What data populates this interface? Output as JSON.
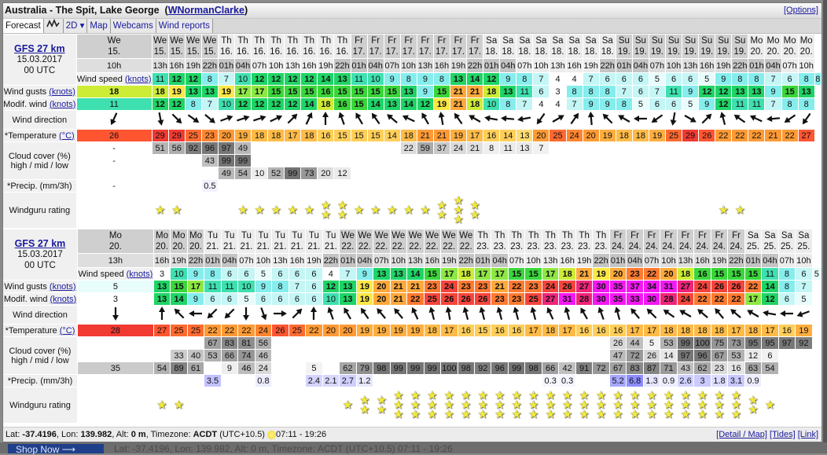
{
  "window": {
    "title": "Australia - The Spit, Lake George",
    "owner_link": "WNormanClarke",
    "options": "[Options]"
  },
  "tabs": [
    {
      "label": "Forecast",
      "active": true
    },
    {
      "label": "",
      "icon": "graph-icon"
    },
    {
      "label": "2D ▾"
    },
    {
      "label": "Map"
    },
    {
      "label": "Webcams"
    },
    {
      "label": "Wind reports"
    }
  ],
  "labels": {
    "model": "GFS 27 km",
    "date": "15.03.2017",
    "run": "00 UTC",
    "wind_speed": "Wind speed",
    "wind_gusts": "Wind gusts",
    "modif_wind": "Modif. wind",
    "knots": "(knots)",
    "direction": "Wind direction",
    "temperature": "*Temperature",
    "celsius": "(°C)",
    "cloud": "Cloud cover (%)",
    "cloud_sub": "high / mid / low",
    "precip": "*Precip. (mm/3h)",
    "rating": "Windguru rating"
  },
  "tables": [
    {
      "day_groups": [
        {
          "day": "We",
          "date": "15.",
          "hours": [
            "10h",
            "13h",
            "16h",
            "19h",
            "22h"
          ]
        },
        {
          "day": "Th",
          "date": "16.",
          "hours": [
            "01h",
            "04h",
            "07h",
            "10h",
            "13h",
            "16h",
            "19h",
            "22h"
          ]
        },
        {
          "day": "Fr",
          "date": "17.",
          "hours": [
            "01h",
            "04h",
            "07h",
            "10h",
            "13h",
            "16h",
            "19h",
            "22h"
          ]
        },
        {
          "day": "Sa",
          "date": "18.",
          "hours": [
            "01h",
            "04h",
            "07h",
            "10h",
            "13h",
            "16h",
            "19h",
            "22h"
          ]
        },
        {
          "day": "Su",
          "date": "19.",
          "hours": [
            "01h",
            "04h",
            "07h",
            "10h",
            "13h",
            "16h",
            "19h",
            "22h"
          ]
        },
        {
          "day": "Mo",
          "date": "20.",
          "hours": [
            "01h",
            "04h",
            "07h",
            "10h"
          ]
        }
      ],
      "wind_speed": [
        11,
        12,
        12,
        8,
        7,
        10,
        12,
        12,
        12,
        12,
        14,
        13,
        11,
        10,
        9,
        8,
        9,
        8,
        13,
        14,
        12,
        9,
        8,
        7,
        4,
        4,
        7,
        6,
        6,
        6,
        5,
        6,
        6,
        5,
        9,
        8,
        8,
        7,
        6,
        8,
        8
      ],
      "wind_gusts": [
        18,
        18,
        19,
        13,
        13,
        19,
        17,
        17,
        15,
        15,
        15,
        16,
        15,
        15,
        15,
        15,
        13,
        9,
        15,
        21,
        21,
        18,
        13,
        11,
        6,
        3,
        8,
        8,
        8,
        7,
        6,
        7,
        11,
        9,
        12,
        12,
        13,
        13,
        9,
        15,
        13
      ],
      "modif_wind": [
        11,
        12,
        12,
        8,
        7,
        10,
        12,
        12,
        12,
        12,
        14,
        18,
        16,
        15,
        14,
        13,
        14,
        12,
        19,
        21,
        18,
        10,
        8,
        7,
        4,
        4,
        7,
        9,
        9,
        8,
        5,
        6,
        6,
        5,
        9,
        12,
        11,
        11,
        7,
        8,
        8
      ],
      "wind_direction_deg": [
        205,
        170,
        135,
        125,
        130,
        70,
        72,
        72,
        65,
        45,
        25,
        0,
        340,
        330,
        325,
        310,
        295,
        330,
        350,
        325,
        300,
        280,
        275,
        260,
        215,
        60,
        35,
        355,
        315,
        300,
        270,
        235,
        190,
        120,
        45,
        345,
        305,
        295,
        265,
        235,
        215
      ],
      "temperature": [
        26,
        29,
        29,
        25,
        23,
        20,
        19,
        18,
        18,
        17,
        18,
        16,
        15,
        15,
        15,
        14,
        18,
        21,
        21,
        19,
        17,
        16,
        14,
        13,
        20,
        25,
        24,
        20,
        19,
        18,
        18,
        19,
        25,
        29,
        26,
        22,
        22,
        22,
        21,
        22,
        27
      ],
      "cloud_high": [
        "-",
        51,
        56,
        92,
        96,
        97,
        49,
        null,
        null,
        null,
        null,
        null,
        null,
        null,
        null,
        null,
        22,
        59,
        37,
        24,
        21,
        8,
        11,
        13,
        7,
        null,
        null,
        null,
        null,
        null,
        null,
        null,
        null,
        null,
        null,
        null,
        null,
        null,
        null,
        null,
        null
      ],
      "cloud_mid": [
        "-",
        null,
        null,
        null,
        43,
        99,
        99,
        null,
        null,
        null,
        null,
        null,
        null,
        null,
        null,
        null,
        null,
        null,
        null,
        null,
        null,
        null,
        null,
        null,
        null,
        null,
        null,
        null,
        null,
        null,
        null,
        null,
        null,
        null,
        null,
        null,
        null,
        null,
        null,
        null,
        null
      ],
      "cloud_low": [
        null,
        null,
        null,
        null,
        null,
        49,
        54,
        10,
        52,
        99,
        73,
        20,
        12,
        null,
        null,
        null,
        null,
        null,
        null,
        null,
        null,
        null,
        null,
        null,
        null,
        null,
        null,
        null,
        null,
        null,
        null,
        null,
        null,
        null,
        null,
        null,
        null,
        null,
        null,
        null,
        null
      ],
      "precip": [
        "-",
        null,
        null,
        null,
        0.5,
        null,
        null,
        null,
        null,
        null,
        null,
        null,
        null,
        null,
        null,
        null,
        null,
        null,
        null,
        null,
        null,
        null,
        null,
        null,
        null,
        null,
        null,
        null,
        null,
        null,
        null,
        null,
        null,
        null,
        null,
        null,
        null,
        null,
        null,
        null,
        null
      ],
      "rating": [
        0,
        1,
        1,
        0,
        0,
        0,
        1,
        1,
        1,
        1,
        1,
        2,
        2,
        1,
        1,
        1,
        1,
        1,
        2,
        3,
        2,
        0,
        0,
        0,
        0,
        0,
        0,
        0,
        0,
        0,
        0,
        0,
        0,
        0,
        0,
        1,
        1,
        0,
        0,
        0,
        0
      ]
    },
    {
      "day_groups": [
        {
          "day": "Mo",
          "date": "20.",
          "hours": [
            "13h",
            "16h",
            "19h",
            "22h"
          ]
        },
        {
          "day": "Tu",
          "date": "21.",
          "hours": [
            "01h",
            "04h",
            "07h",
            "10h",
            "13h",
            "16h",
            "19h",
            "22h"
          ]
        },
        {
          "day": "We",
          "date": "22.",
          "hours": [
            "01h",
            "04h",
            "07h",
            "10h",
            "13h",
            "16h",
            "19h",
            "22h"
          ]
        },
        {
          "day": "Th",
          "date": "23.",
          "hours": [
            "01h",
            "04h",
            "07h",
            "10h",
            "13h",
            "16h",
            "19h",
            "22h"
          ]
        },
        {
          "day": "Fr",
          "date": "24.",
          "hours": [
            "01h",
            "04h",
            "07h",
            "10h",
            "13h",
            "16h",
            "19h",
            "22h"
          ]
        },
        {
          "day": "Sa",
          "date": "25.",
          "hours": [
            "01h",
            "04h",
            "07h",
            "10h"
          ]
        }
      ],
      "wind_speed": [
        3,
        10,
        9,
        8,
        6,
        6,
        5,
        6,
        6,
        6,
        4,
        7,
        9,
        13,
        13,
        14,
        15,
        17,
        18,
        17,
        17,
        15,
        15,
        17,
        18,
        21,
        19,
        20,
        23,
        22,
        20,
        18,
        16,
        15,
        15,
        15,
        11,
        8,
        6,
        5
      ],
      "wind_gusts": [
        5,
        13,
        15,
        17,
        11,
        11,
        10,
        9,
        8,
        7,
        6,
        12,
        13,
        19,
        20,
        21,
        21,
        23,
        24,
        23,
        23,
        21,
        22,
        23,
        24,
        26,
        27,
        30,
        35,
        37,
        34,
        31,
        27,
        24,
        26,
        26,
        22,
        14,
        8,
        7
      ],
      "modif_wind": [
        3,
        13,
        14,
        9,
        6,
        6,
        5,
        6,
        6,
        6,
        6,
        10,
        13,
        19,
        20,
        21,
        22,
        25,
        26,
        26,
        26,
        23,
        23,
        25,
        27,
        31,
        28,
        30,
        35,
        33,
        30,
        28,
        24,
        22,
        22,
        22,
        17,
        12,
        6,
        5
      ],
      "wind_direction_deg": [
        180,
        0,
        315,
        270,
        225,
        225,
        180,
        160,
        90,
        45,
        0,
        340,
        330,
        325,
        320,
        320,
        335,
        345,
        350,
        345,
        345,
        345,
        345,
        345,
        335,
        345,
        330,
        340,
        345,
        320,
        315,
        305,
        300,
        310,
        320,
        310,
        300,
        280,
        270,
        250
      ],
      "temperature": [
        28,
        27,
        25,
        25,
        22,
        22,
        22,
        24,
        26,
        25,
        22,
        20,
        20,
        19,
        19,
        19,
        19,
        18,
        17,
        16,
        15,
        16,
        16,
        17,
        18,
        17,
        16,
        16,
        16,
        17,
        17,
        18,
        18,
        18,
        18,
        17,
        18,
        17,
        16,
        19
      ],
      "cloud_high": [
        null,
        null,
        null,
        null,
        67,
        83,
        81,
        56,
        null,
        null,
        null,
        null,
        null,
        null,
        null,
        null,
        null,
        null,
        null,
        null,
        null,
        null,
        null,
        null,
        null,
        null,
        null,
        null,
        26,
        44,
        5,
        53,
        99,
        100,
        75,
        73,
        95,
        95,
        97,
        92
      ],
      "cloud_mid": [
        null,
        null,
        33,
        40,
        53,
        66,
        74,
        46,
        null,
        null,
        null,
        null,
        null,
        null,
        null,
        null,
        null,
        null,
        null,
        null,
        null,
        null,
        null,
        null,
        null,
        null,
        null,
        null,
        47,
        72,
        26,
        14,
        97,
        96,
        67,
        53,
        12,
        6,
        null,
        null
      ],
      "cloud_low": [
        35,
        54,
        89,
        61,
        null,
        9,
        46,
        24,
        null,
        null,
        5,
        null,
        62,
        79,
        98,
        99,
        99,
        99,
        100,
        98,
        92,
        96,
        99,
        98,
        66,
        42,
        91,
        72,
        67,
        83,
        87,
        71,
        43,
        62,
        23,
        16,
        63,
        54,
        null,
        null
      ],
      "precip": [
        null,
        null,
        null,
        null,
        3.5,
        null,
        null,
        0.8,
        null,
        null,
        2.4,
        2.1,
        2.7,
        1.2,
        null,
        null,
        null,
        null,
        null,
        null,
        null,
        null,
        null,
        null,
        0.3,
        0.3,
        null,
        null,
        5.2,
        6.8,
        1.3,
        0.9,
        2.6,
        3,
        1.8,
        3.1,
        0.9,
        null,
        null,
        null
      ],
      "rating": [
        0,
        1,
        1,
        0,
        0,
        0,
        0,
        0,
        0,
        0,
        0,
        0,
        1,
        2,
        2,
        3,
        3,
        3,
        3,
        3,
        3,
        3,
        3,
        3,
        3,
        3,
        3,
        3,
        3,
        3,
        3,
        3,
        3,
        3,
        3,
        3,
        2,
        1,
        0,
        0
      ]
    }
  ],
  "footer": {
    "lat_label": "Lat:",
    "lat": "-37.4196",
    "lon_label": ", Lon:",
    "lon": "139.982",
    "alt_label": ", Alt:",
    "alt": "0 m",
    "tz_label": ", Timezone:",
    "tz": "ACDT",
    "utc": "(UTC+10.5)",
    "sun_times": "07:11 - 19:26",
    "links": [
      "[Detail / Map]",
      "[Tides]",
      "[Link]"
    ]
  },
  "background": {
    "shop_now": "Shop Now ⟶",
    "footer_echo": "Lat: -37.4196, Lon: 139.982, Alt: 0 m, Timezone: ACDT (UTC+10.5)   07:11 - 19:26"
  },
  "colors": {
    "link": "#1a1a9c",
    "star": "#f2ea3a",
    "label_bg": "#f0f0f0"
  }
}
